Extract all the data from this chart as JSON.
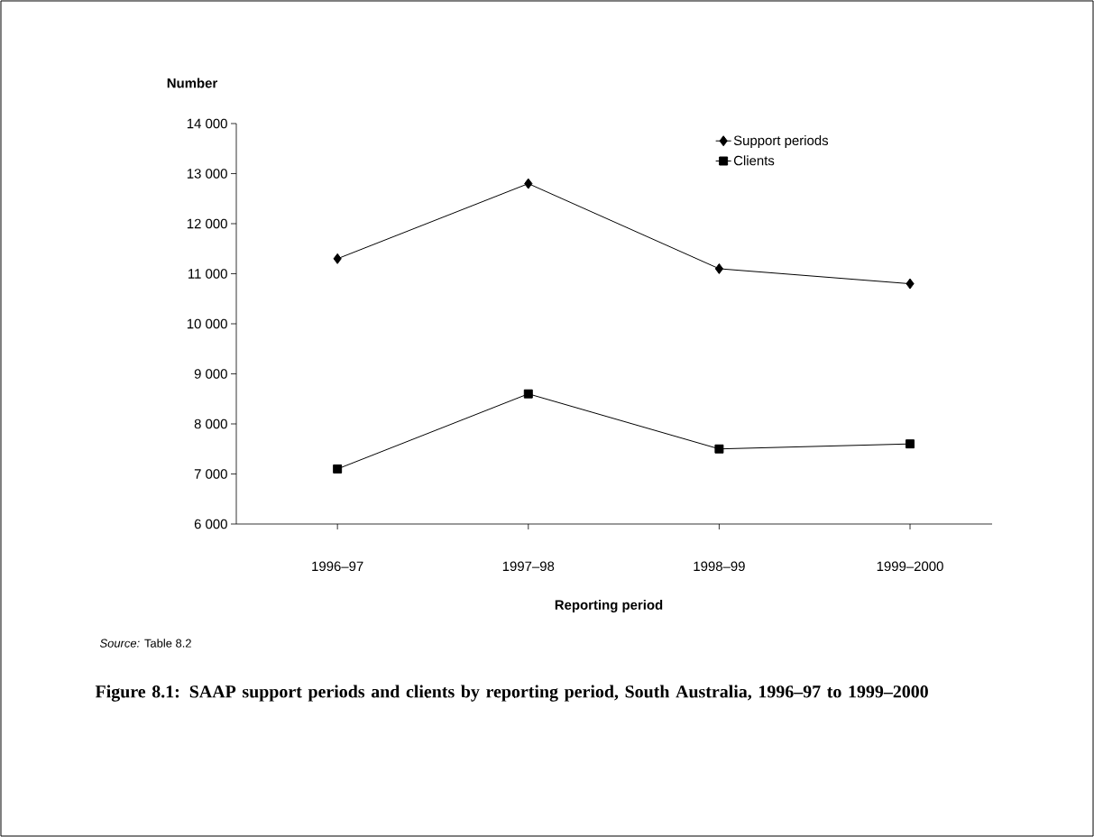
{
  "chart_data": {
    "type": "line",
    "title": "Figure 8.1: SAAP support periods and clients by reporting period, South Australia, 1996–97 to 1999–2000",
    "xlabel": "Reporting period",
    "ylabel": "Number",
    "annotations": [
      "*Source:* Table 8.2"
    ],
    "categories": [
      "1996–97",
      "1997–98",
      "1998–99",
      "1999–2000"
    ],
    "series": [
      {
        "name": "Support periods",
        "color": "#000000",
        "marker": "diamond",
        "values": [
          11300,
          12800,
          11100,
          10800
        ]
      },
      {
        "name": "Clients",
        "color": "#000000",
        "marker": "square",
        "values": [
          7100,
          8600,
          7500,
          7600
        ]
      }
    ],
    "ylim": [
      6000,
      14000
    ],
    "yticks": [
      {
        "value": 6000,
        "label": "6 000"
      },
      {
        "value": 7000,
        "label": "7 000"
      },
      {
        "value": 8000,
        "label": "8 000"
      },
      {
        "value": 9000,
        "label": "9 000"
      },
      {
        "value": 10000,
        "label": "10 000"
      },
      {
        "value": 11000,
        "label": "11 000"
      },
      {
        "value": 12000,
        "label": "12 000"
      },
      {
        "value": 13000,
        "label": "13 000"
      },
      {
        "value": 14000,
        "label": "14 000"
      }
    ],
    "grid": false,
    "legend": "top right",
    "line_style": "solid"
  }
}
